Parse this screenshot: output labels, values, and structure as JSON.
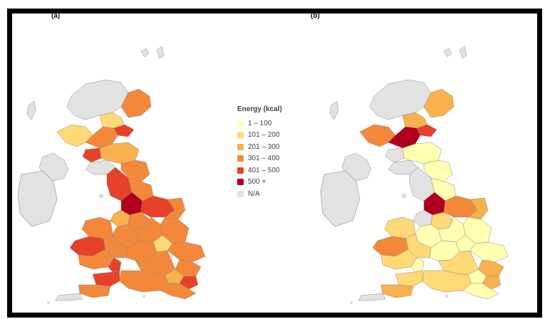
{
  "panels": [
    {
      "label": "(a)"
    },
    {
      "label": "(b)"
    }
  ],
  "legend": {
    "title": "Energy (kcal)",
    "items": [
      {
        "label": "1 – 100",
        "color": "#ffffb2"
      },
      {
        "label": "101 – 200",
        "color": "#fed976"
      },
      {
        "label": "201 – 300",
        "color": "#f8b14e"
      },
      {
        "label": "301 – 400",
        "color": "#f4883a"
      },
      {
        "label": "401 – 500",
        "color": "#e8412a"
      },
      {
        "label": "500 +",
        "color": "#b0001d"
      },
      {
        "label": "N/A",
        "color": "#e2e2e2"
      }
    ]
  },
  "colors": {
    "frame": "#000000",
    "region_border": "#8a8a8a"
  }
}
